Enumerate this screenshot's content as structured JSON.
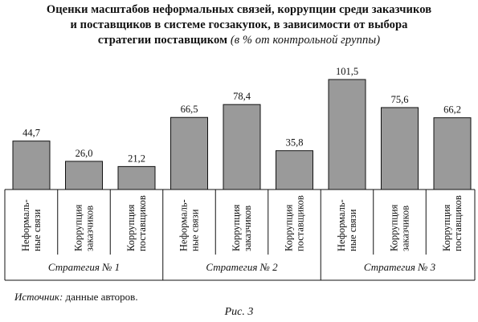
{
  "title": {
    "line1": "Оценки масштабов неформальных связей, коррупции среди заказчиков",
    "line2": "и поставщиков в системе госзакупок, в зависимости от выбора",
    "line3_bold": "стратегии поставщиком",
    "line3_italic": "(в % от контрольной группы)"
  },
  "chart_data": {
    "type": "bar",
    "groups": [
      "Стратегия № 1",
      "Стратегия № 2",
      "Стратегия № 3"
    ],
    "categories": [
      [
        "Неформаль-",
        "ные связи"
      ],
      [
        "Коррупция",
        "заказчиков"
      ],
      [
        "Коррупция",
        "поставщиков"
      ]
    ],
    "values": [
      [
        44.7,
        26.0,
        21.2
      ],
      [
        66.5,
        78.4,
        35.8
      ],
      [
        101.5,
        75.6,
        66.2
      ]
    ],
    "value_labels": [
      [
        "44,7",
        "26,0",
        "21,2"
      ],
      [
        "66,5",
        "78,4",
        "35,8"
      ],
      [
        "101,5",
        "75,6",
        "66,2"
      ]
    ],
    "ylim": [
      0,
      101.5
    ],
    "bar_color": "#9a9a9a",
    "grid": false
  },
  "source": {
    "label": "Источник:",
    "text": "данные авторов."
  },
  "caption": "Рис. 3"
}
